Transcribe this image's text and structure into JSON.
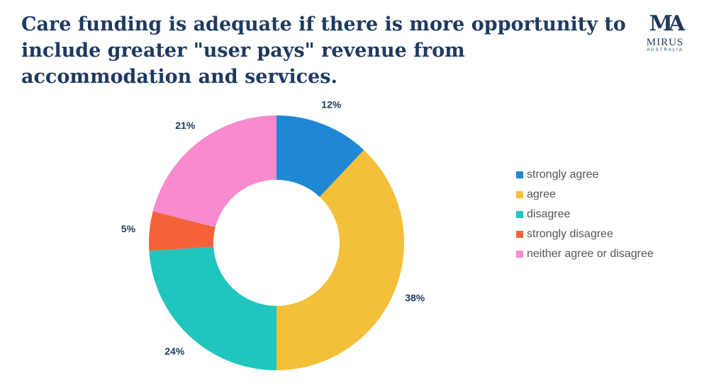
{
  "title": "Care funding is adequate if there is more opportunity to include greater \"user pays\" revenue from accommodation and services.",
  "logo": {
    "name": "MIRUS",
    "sub": "AUSTRALIA",
    "mark": "MA",
    "color": "#1f3a5f"
  },
  "chart_data": {
    "type": "pie",
    "donut": true,
    "title": "Care funding is adequate if there is more opportunity to include greater \"user pays\" revenue from accommodation and services.",
    "legend_position": "right",
    "slices": [
      {
        "label": "strongly agree",
        "value": 12,
        "display": "12%",
        "color": "#1e88d4"
      },
      {
        "label": "agree",
        "value": 38,
        "display": "38%",
        "color": "#f4c03a"
      },
      {
        "label": "disagree",
        "value": 24,
        "display": "24%",
        "color": "#20c5be"
      },
      {
        "label": "strongly disagree",
        "value": 5,
        "display": "5%",
        "color": "#f4623a"
      },
      {
        "label": "neither agree or disagree",
        "value": 21,
        "display": "21%",
        "color": "#f78bcd"
      }
    ]
  }
}
